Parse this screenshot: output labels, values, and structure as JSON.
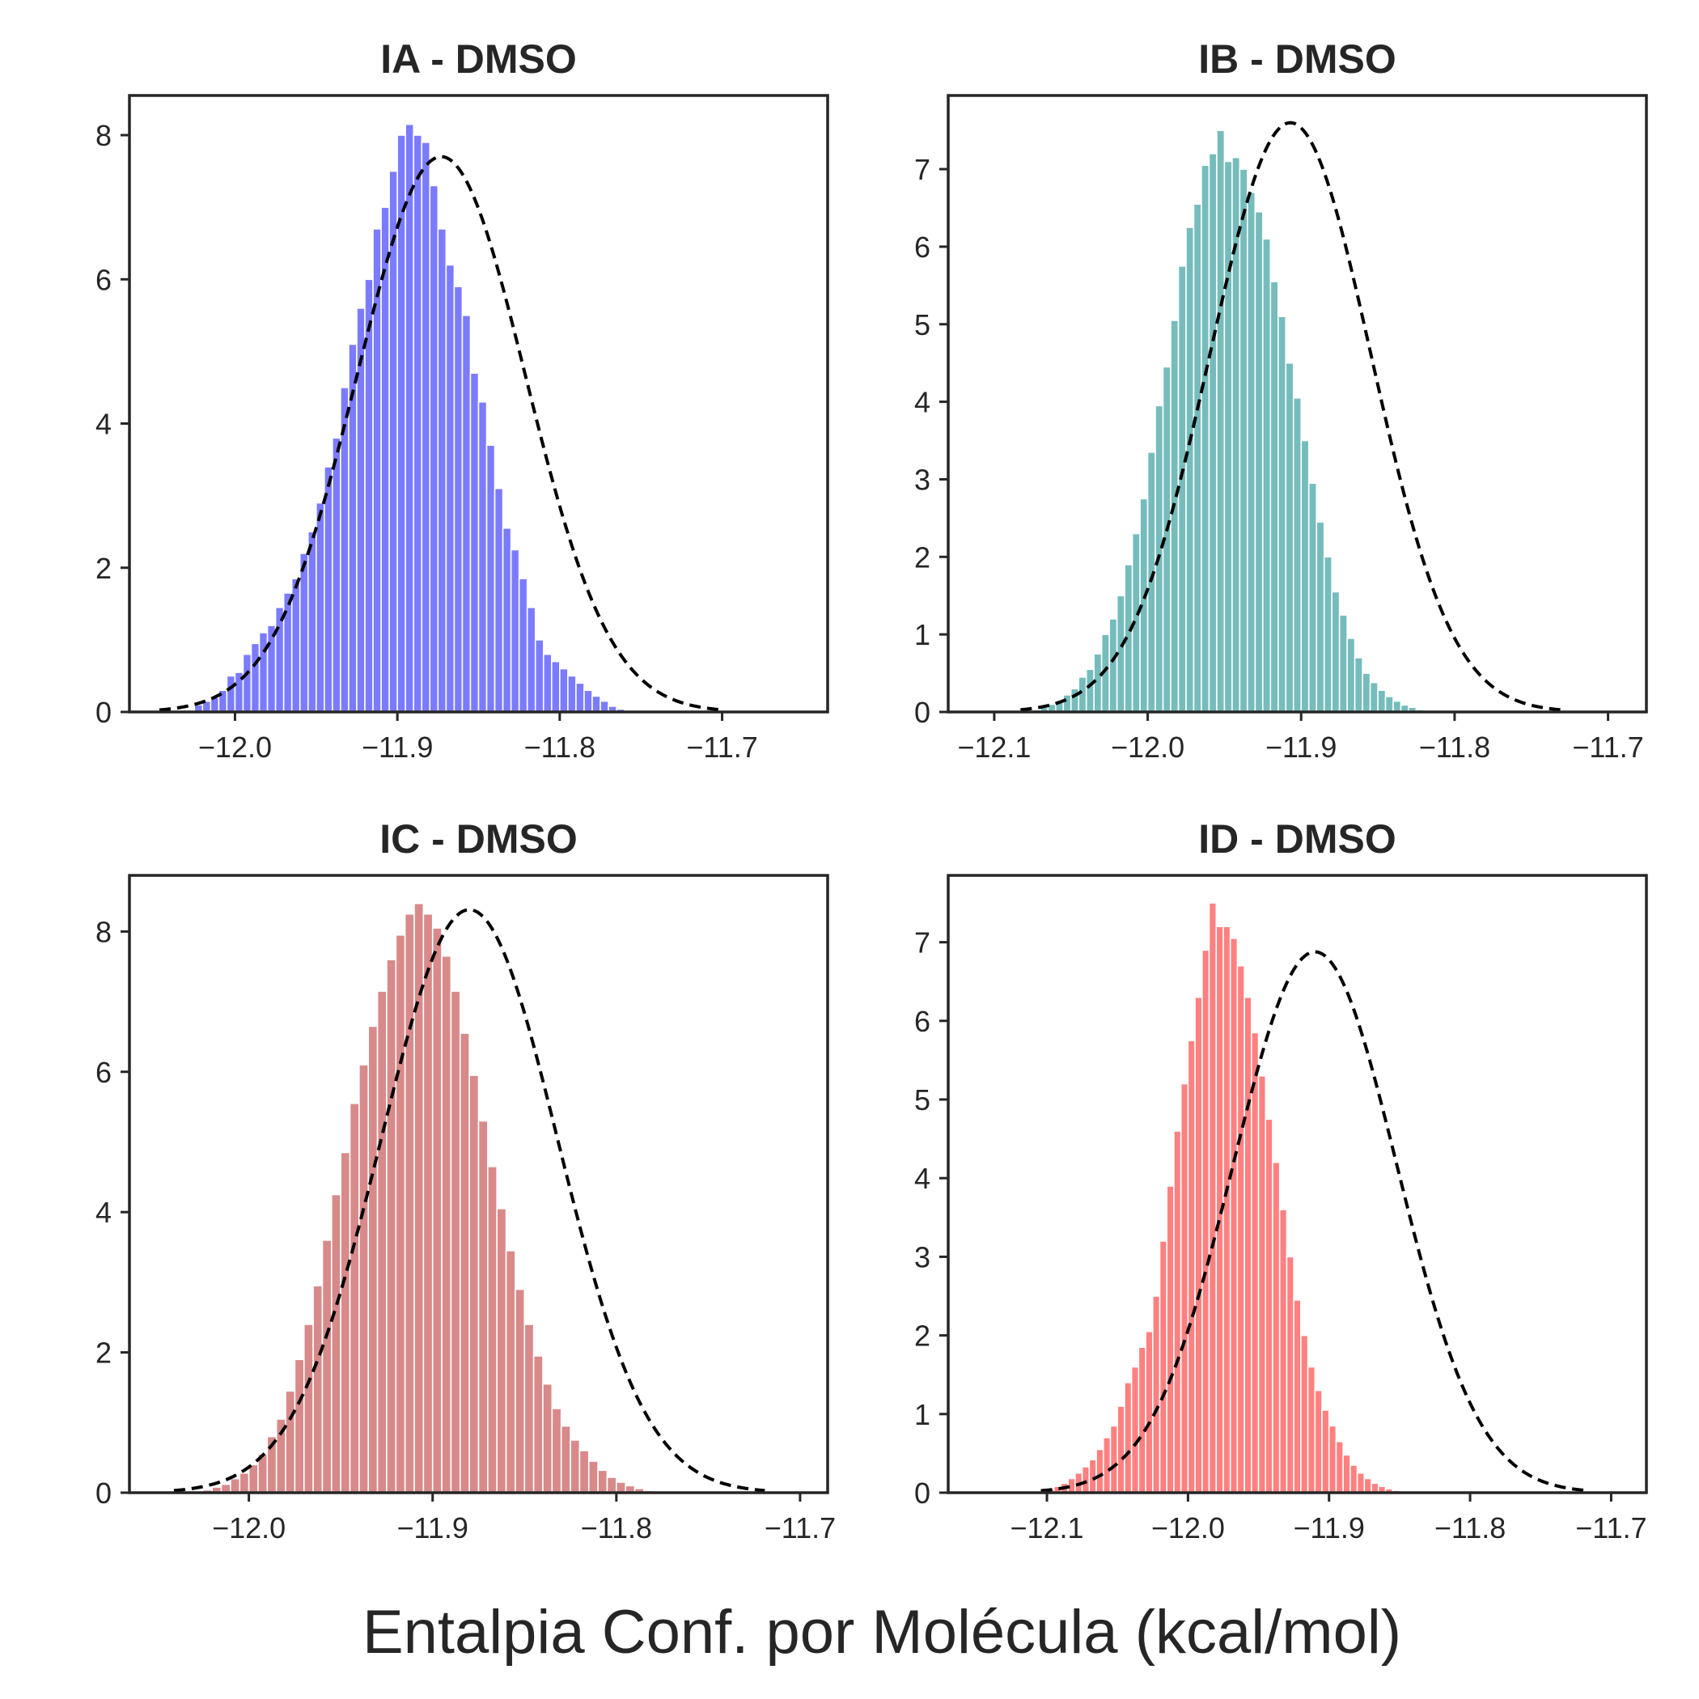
{
  "figure": {
    "xlabel": "Entalpia Conf. por Molécula (kcal/mol)"
  },
  "chart_data": [
    {
      "type": "bar",
      "subtype": "histogram with normal fit",
      "title": "IA - DMSO",
      "color": "#7b7bff",
      "fit_style": "black dashed",
      "xlim": [
        -12.065,
        -11.635
      ],
      "ylim": [
        0,
        8.55
      ],
      "xticks": [
        -12.0,
        -11.9,
        -11.8,
        -11.7
      ],
      "xtick_labels": [
        "−12.0",
        "−11.9",
        "−11.8",
        "−11.7"
      ],
      "yticks": [
        0,
        2,
        4,
        6,
        8
      ],
      "ytick_labels": [
        "0",
        "2",
        "4",
        "6",
        "8"
      ],
      "grid": false,
      "fit": {
        "mean": -11.873,
        "std": 0.0518
      },
      "bins": {
        "start": -12.03,
        "width": 0.005,
        "counts": [
          0.0,
          0.1,
          0.15,
          0.2,
          0.3,
          0.5,
          0.55,
          0.8,
          0.95,
          1.1,
          1.2,
          1.45,
          1.65,
          1.85,
          2.2,
          2.5,
          2.9,
          3.4,
          3.8,
          4.5,
          5.1,
          5.6,
          6.0,
          6.7,
          7.0,
          7.5,
          8.0,
          8.15,
          8.0,
          7.9,
          7.3,
          6.7,
          6.2,
          5.9,
          5.5,
          4.7,
          4.3,
          3.7,
          3.1,
          2.55,
          2.25,
          1.85,
          1.45,
          1.0,
          0.8,
          0.7,
          0.6,
          0.5,
          0.4,
          0.3,
          0.22,
          0.15,
          0.08,
          0.04,
          0.02
        ]
      }
    },
    {
      "type": "bar",
      "subtype": "histogram with normal fit",
      "title": "IB - DMSO",
      "color": "#76bcbc",
      "fit_style": "black dashed",
      "xlim": [
        -12.13,
        -11.675
      ],
      "ylim": [
        0,
        7.95
      ],
      "xticks": [
        -12.1,
        -12.0,
        -11.9,
        -11.8,
        -11.7
      ],
      "xtick_labels": [
        "−12.1",
        "−12.0",
        "−11.9",
        "−11.8",
        "−11.7"
      ],
      "yticks": [
        0,
        1,
        2,
        3,
        4,
        5,
        6,
        7
      ],
      "ytick_labels": [
        "0",
        "1",
        "2",
        "3",
        "4",
        "5",
        "6",
        "7"
      ],
      "grid": false,
      "fit": {
        "mean": -11.907,
        "std": 0.0525
      },
      "bins": {
        "start": -12.075,
        "width": 0.005,
        "counts": [
          0.03,
          0.06,
          0.1,
          0.15,
          0.22,
          0.3,
          0.45,
          0.55,
          0.75,
          1.0,
          1.2,
          1.5,
          1.9,
          2.3,
          2.75,
          3.35,
          3.95,
          4.45,
          5.05,
          5.75,
          6.25,
          6.55,
          7.05,
          7.2,
          7.5,
          7.1,
          7.15,
          7.0,
          6.7,
          6.45,
          6.1,
          5.55,
          5.1,
          4.5,
          4.05,
          3.5,
          2.95,
          2.45,
          2.0,
          1.55,
          1.25,
          0.95,
          0.7,
          0.5,
          0.38,
          0.28,
          0.2,
          0.14,
          0.09,
          0.06,
          0.03
        ]
      }
    },
    {
      "type": "bar",
      "subtype": "histogram with normal fit",
      "title": "IC - DMSO",
      "color": "#d88a8a",
      "fit_style": "black dashed",
      "xlim": [
        -12.065,
        -11.685
      ],
      "ylim": [
        0,
        8.8
      ],
      "xticks": [
        -12.0,
        -11.9,
        -11.8,
        -11.7
      ],
      "xtick_labels": [
        "−12.0",
        "−11.9",
        "−11.8",
        "−11.7"
      ],
      "yticks": [
        0,
        2,
        4,
        6,
        8
      ],
      "ytick_labels": [
        "0",
        "2",
        "4",
        "6",
        "8"
      ],
      "grid": false,
      "fit": {
        "mean": -11.88,
        "std": 0.048
      },
      "bins": {
        "start": -12.03,
        "width": 0.005,
        "counts": [
          0.02,
          0.04,
          0.08,
          0.12,
          0.2,
          0.28,
          0.4,
          0.55,
          0.8,
          1.05,
          1.45,
          1.9,
          2.4,
          2.95,
          3.6,
          4.25,
          4.85,
          5.55,
          6.1,
          6.65,
          7.15,
          7.6,
          7.95,
          8.25,
          8.4,
          8.25,
          8.05,
          7.65,
          7.15,
          6.55,
          5.95,
          5.3,
          4.65,
          4.05,
          3.45,
          2.9,
          2.4,
          1.95,
          1.55,
          1.2,
          0.95,
          0.75,
          0.6,
          0.45,
          0.32,
          0.22,
          0.15,
          0.1,
          0.06,
          0.03
        ]
      }
    },
    {
      "type": "bar",
      "subtype": "histogram with normal fit",
      "title": "ID - DMSO",
      "color": "#ff8080",
      "fit_style": "black dashed",
      "xlim": [
        -12.17,
        -11.675
      ],
      "ylim": [
        0,
        7.85
      ],
      "xticks": [
        -12.1,
        -12.0,
        -11.9,
        -11.8,
        -11.7
      ],
      "xtick_labels": [
        "−12.1",
        "−12.0",
        "−11.9",
        "−11.8",
        "−11.7"
      ],
      "yticks": [
        0,
        1,
        2,
        3,
        4,
        5,
        6,
        7
      ],
      "ytick_labels": [
        "0",
        "1",
        "2",
        "3",
        "4",
        "5",
        "6",
        "7"
      ],
      "grid": false,
      "fit": {
        "mean": -11.91,
        "std": 0.058
      },
      "bins": {
        "start": -12.1,
        "width": 0.005,
        "counts": [
          0.05,
          0.08,
          0.12,
          0.18,
          0.25,
          0.33,
          0.42,
          0.55,
          0.7,
          0.85,
          1.1,
          1.4,
          1.6,
          1.85,
          2.05,
          2.5,
          3.2,
          3.9,
          4.6,
          5.2,
          5.75,
          6.3,
          6.9,
          7.5,
          7.2,
          7.2,
          7.05,
          6.7,
          6.3,
          5.85,
          5.3,
          4.75,
          4.2,
          3.6,
          3.0,
          2.45,
          2.0,
          1.6,
          1.3,
          1.05,
          0.85,
          0.65,
          0.48,
          0.35,
          0.25,
          0.18,
          0.12,
          0.08,
          0.05,
          0.03
        ]
      }
    }
  ]
}
